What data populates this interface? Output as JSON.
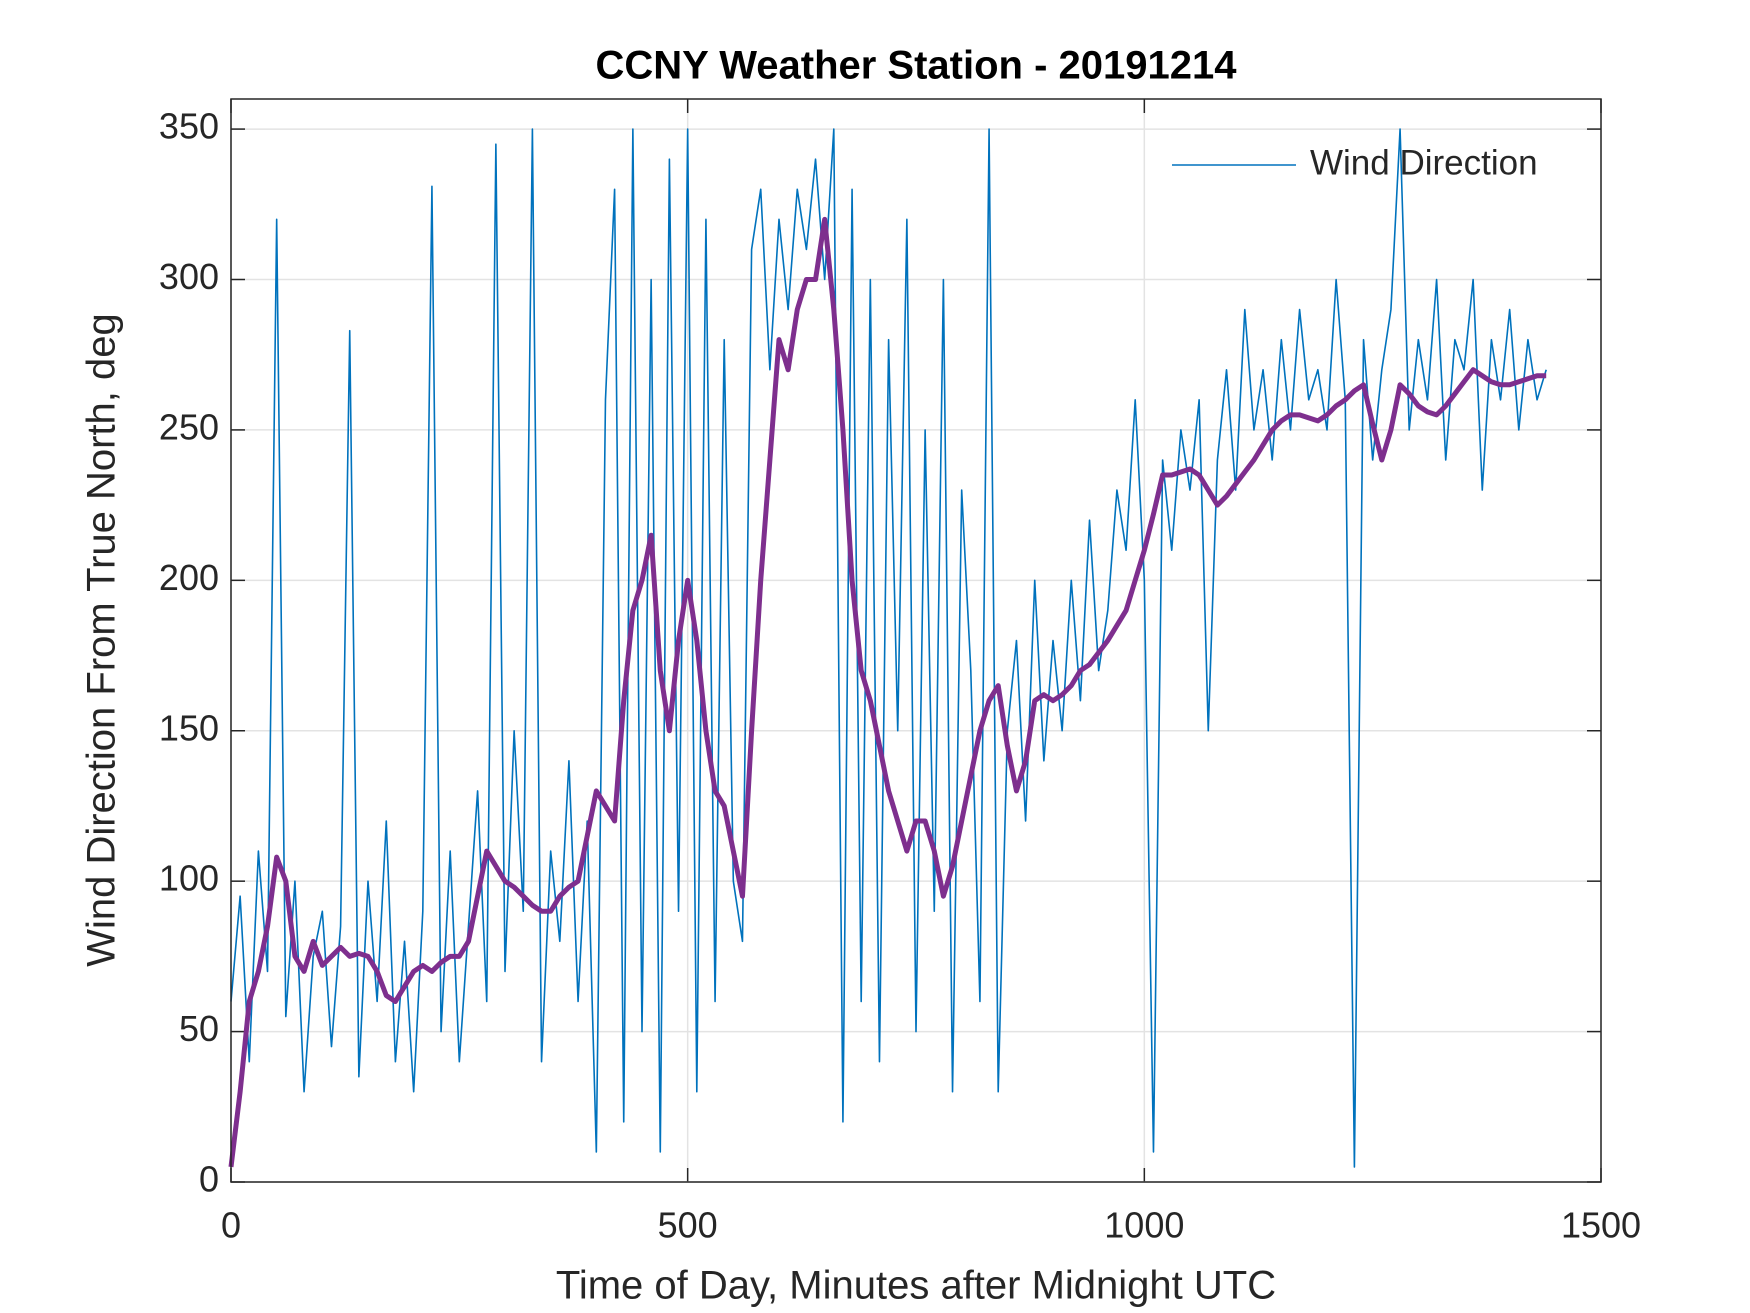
{
  "chart_data": {
    "type": "line",
    "title": "CCNY Weather Station - 20191214",
    "xlabel": "Time of Day, Minutes after Midnight UTC",
    "ylabel": "Wind Direction From True North, deg",
    "x": [
      0,
      10,
      20,
      30,
      40,
      50,
      60,
      70,
      80,
      90,
      100,
      110,
      120,
      130,
      140,
      150,
      160,
      170,
      180,
      190,
      200,
      210,
      220,
      230,
      240,
      250,
      260,
      270,
      280,
      290,
      300,
      310,
      320,
      330,
      340,
      350,
      360,
      370,
      380,
      390,
      400,
      410,
      420,
      430,
      440,
      450,
      460,
      470,
      480,
      490,
      500,
      510,
      520,
      530,
      540,
      550,
      560,
      570,
      580,
      590,
      600,
      610,
      620,
      630,
      640,
      650,
      660,
      670,
      680,
      690,
      700,
      710,
      720,
      730,
      740,
      750,
      760,
      770,
      780,
      790,
      800,
      810,
      820,
      830,
      840,
      850,
      860,
      870,
      880,
      890,
      900,
      910,
      920,
      930,
      940,
      950,
      960,
      970,
      980,
      990,
      1000,
      1010,
      1020,
      1030,
      1040,
      1050,
      1060,
      1070,
      1080,
      1090,
      1100,
      1110,
      1120,
      1130,
      1140,
      1150,
      1160,
      1170,
      1180,
      1190,
      1200,
      1210,
      1220,
      1230,
      1240,
      1250,
      1260,
      1270,
      1280,
      1290,
      1300,
      1310,
      1320,
      1330,
      1340,
      1350,
      1360,
      1370,
      1380,
      1390,
      1400,
      1410,
      1420,
      1430,
      1440
    ],
    "series": [
      {
        "name": "Wind Direction",
        "color": "#0072bd",
        "width": 1.6,
        "values": [
          60,
          95,
          40,
          110,
          70,
          320,
          55,
          100,
          30,
          75,
          90,
          45,
          85,
          283,
          35,
          100,
          60,
          120,
          40,
          80,
          30,
          90,
          331,
          50,
          110,
          40,
          85,
          130,
          60,
          345,
          70,
          150,
          90,
          350,
          40,
          110,
          80,
          140,
          60,
          120,
          10,
          260,
          330,
          20,
          350,
          50,
          300,
          10,
          340,
          90,
          350,
          30,
          320,
          60,
          280,
          100,
          80,
          310,
          330,
          270,
          320,
          290,
          330,
          310,
          340,
          300,
          350,
          20,
          330,
          60,
          300,
          40,
          280,
          150,
          320,
          50,
          250,
          90,
          300,
          30,
          230,
          170,
          60,
          350,
          30,
          150,
          180,
          120,
          200,
          140,
          180,
          150,
          200,
          160,
          220,
          170,
          190,
          230,
          210,
          260,
          200,
          10,
          240,
          210,
          250,
          230,
          260,
          150,
          240,
          270,
          230,
          290,
          250,
          270,
          240,
          280,
          250,
          290,
          260,
          270,
          250,
          300,
          260,
          5,
          280,
          240,
          270,
          290,
          350,
          250,
          280,
          260,
          300,
          240,
          280,
          270,
          300,
          230,
          280,
          260,
          290,
          250,
          280,
          260,
          270
        ]
      },
      {
        "color": "#7e2f8e",
        "width": 5,
        "values": [
          5,
          30,
          60,
          70,
          85,
          108,
          100,
          75,
          70,
          80,
          72,
          75,
          78,
          75,
          76,
          75,
          70,
          62,
          60,
          65,
          70,
          72,
          70,
          73,
          75,
          75,
          80,
          95,
          110,
          105,
          100,
          98,
          95,
          92,
          90,
          90,
          95,
          98,
          100,
          115,
          130,
          125,
          120,
          160,
          190,
          200,
          215,
          170,
          150,
          180,
          200,
          180,
          150,
          130,
          125,
          110,
          95,
          150,
          200,
          240,
          280,
          270,
          290,
          300,
          300,
          320,
          290,
          250,
          200,
          170,
          160,
          145,
          130,
          120,
          110,
          120,
          120,
          110,
          95,
          105,
          120,
          135,
          150,
          160,
          165,
          145,
          130,
          140,
          160,
          162,
          160,
          162,
          165,
          170,
          172,
          176,
          180,
          185,
          190,
          200,
          210,
          222,
          235,
          235,
          236,
          237,
          235,
          230,
          225,
          228,
          232,
          236,
          240,
          245,
          250,
          253,
          255,
          255,
          254,
          253,
          255,
          258,
          260,
          263,
          265,
          252,
          240,
          250,
          265,
          262,
          258,
          256,
          255,
          258,
          262,
          266,
          270,
          268,
          266,
          265,
          265,
          266,
          267,
          268,
          268
        ]
      }
    ],
    "xlim": [
      0,
      1500
    ],
    "xticks": [
      0,
      500,
      1000,
      1500
    ],
    "ylim": [
      0,
      360
    ],
    "yticks": [
      0,
      50,
      100,
      150,
      200,
      250,
      300,
      350
    ],
    "grid": true,
    "legend": "northeast"
  }
}
